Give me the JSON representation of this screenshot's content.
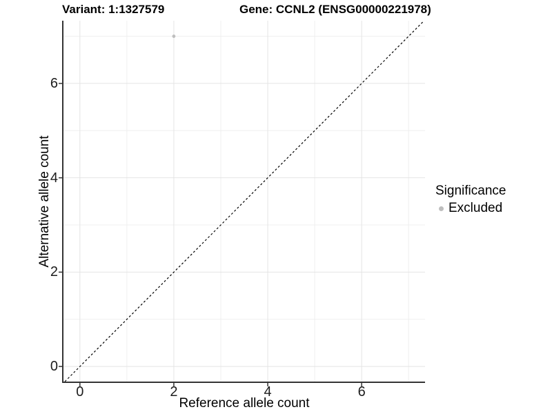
{
  "chart_data": {
    "type": "scatter",
    "title_left": "Variant: 1:1327579",
    "title_right": "Gene: CCNL2 (ENSG00000221978)",
    "xlabel": "Reference allele count",
    "ylabel": "Alternative allele count",
    "x_ticks": [
      0,
      2,
      4,
      6
    ],
    "y_ticks": [
      0,
      2,
      4,
      6
    ],
    "x_minor_ticks": [
      1,
      3,
      5,
      7
    ],
    "y_minor_ticks": [
      1,
      3,
      5,
      7
    ],
    "xlim": [
      -0.35,
      7.35
    ],
    "ylim": [
      -0.32,
      7.33
    ],
    "grid": true,
    "legend": {
      "title": "Significance",
      "position": "right"
    },
    "series": [
      {
        "name": "Excluded",
        "color": "#bebebe",
        "points": [
          {
            "x": 2,
            "y": 7
          }
        ]
      }
    ],
    "reference_line": {
      "type": "identity",
      "slope": 1,
      "intercept": 0,
      "style": "dashed",
      "color": "#000000"
    }
  },
  "colors": {
    "background": "#ffffff",
    "grid_major": "#e4e4e4",
    "grid_minor": "#efefef",
    "axis_line": "#333333",
    "tick_text": "#1c1c1c",
    "point": "#bebebe"
  }
}
